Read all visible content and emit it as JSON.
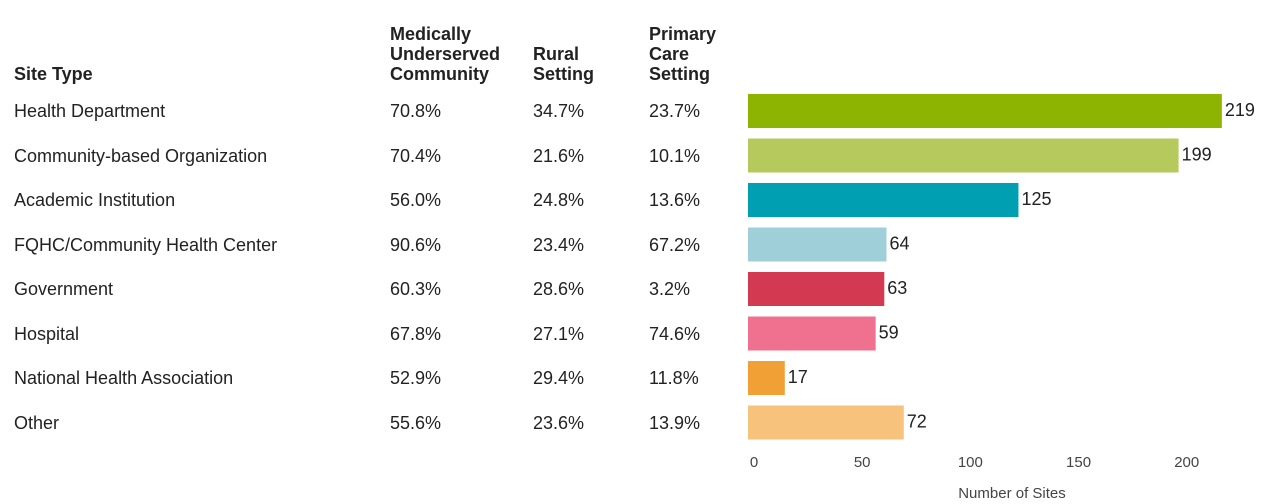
{
  "table": {
    "columns": [
      "Site Type",
      "Medically Underserved Community",
      "Rural Setting",
      "Primary Care Setting"
    ],
    "rows": [
      [
        "Health Department",
        "70.8%",
        "34.7%",
        "23.7%"
      ],
      [
        "Community-based Organization",
        "70.4%",
        "21.6%",
        "10.1%"
      ],
      [
        "Academic Institution",
        "56.0%",
        "24.8%",
        "13.6%"
      ],
      [
        "FQHC/Community Health Center",
        "90.6%",
        "23.4%",
        "67.2%"
      ],
      [
        "Government",
        "60.3%",
        "28.6%",
        "3.2%"
      ],
      [
        "Hospital",
        "67.8%",
        "27.1%",
        "74.6%"
      ],
      [
        "National Health Association",
        "52.9%",
        "29.4%",
        "11.8%"
      ],
      [
        "Other",
        "55.6%",
        "23.6%",
        "13.9%"
      ]
    ]
  },
  "chart_data": {
    "type": "bar",
    "orientation": "horizontal",
    "x_label": "Number of Sites",
    "values": [
      219,
      199,
      125,
      64,
      63,
      59,
      17,
      72
    ],
    "colors": [
      "#8cb400",
      "#b6c95c",
      "#00a0b2",
      "#9fd0da",
      "#d33a52",
      "#f07090",
      "#f0a035",
      "#f6c27c"
    ],
    "xlim": [
      0,
      220
    ],
    "xticks": [
      0,
      50,
      100,
      150,
      200
    ]
  }
}
